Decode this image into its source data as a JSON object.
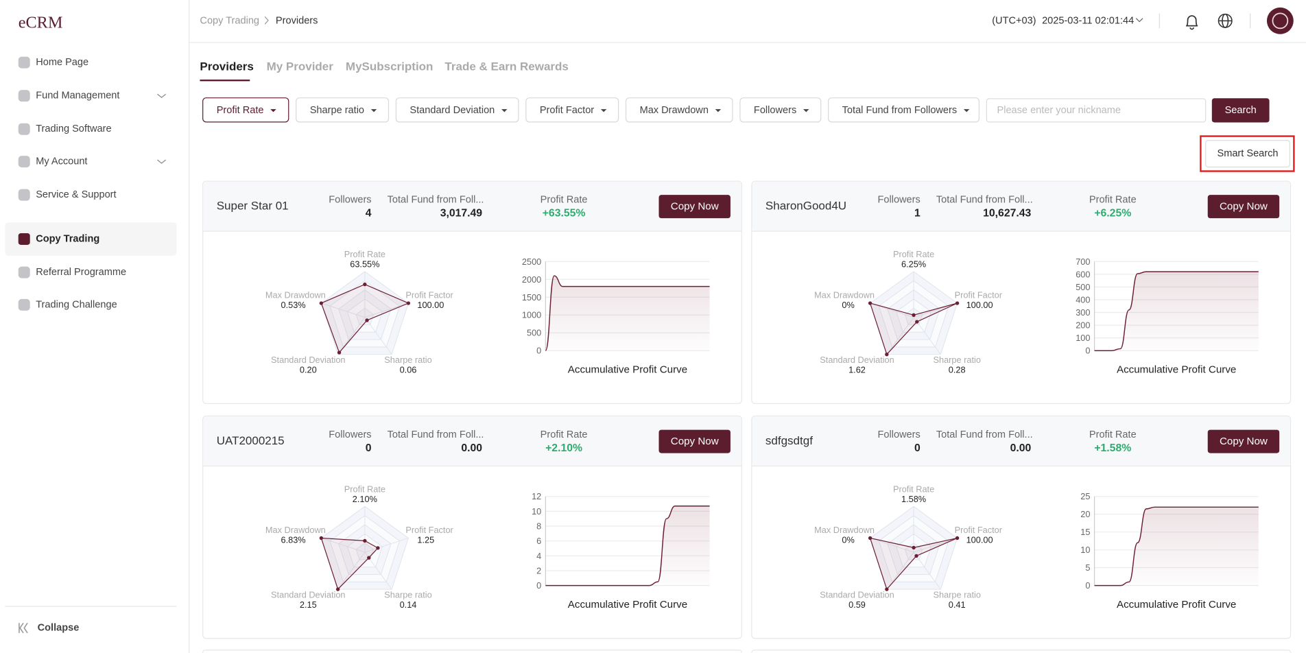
{
  "sidebar": {
    "logo": "eCRM",
    "items": [
      "Home Page",
      "Fund Management",
      "Trading Software",
      "My Account",
      "Service & Support",
      "Copy Trading",
      "Referral Programme",
      "Trading Challenge"
    ],
    "collapse": "Collapse"
  },
  "header": {
    "breadcrumb": [
      "Copy Trading",
      "Providers"
    ],
    "timezone": "(UTC+03)",
    "datetime": "2025-03-11 02:01:44"
  },
  "tabs": [
    "Providers",
    "My Provider",
    "MySubscription",
    "Trade & Earn Rewards"
  ],
  "filters": [
    "Profit Rate",
    "Sharpe ratio",
    "Standard Deviation",
    "Profit Factor",
    "Max Drawdown",
    "Followers",
    "Total Fund from Followers"
  ],
  "search_placeholder": "Please enter your nickname",
  "search_button": "Search",
  "smart_search": "Smart Search",
  "card_labels": {
    "followers": "Followers",
    "total_fund": "Total Fund from Foll...",
    "profit_rate": "Profit Rate",
    "copy": "Copy Now",
    "curve_title": "Accumulative Profit Curve"
  },
  "radar_axes": [
    "Profit Rate",
    "Profit Factor",
    "Sharpe ratio",
    "Standard Deviation",
    "Max Drawdown"
  ],
  "providers": [
    {
      "name": "Super Star 01",
      "followers": 4,
      "total_fund": "3,017.49",
      "profit_rate": "+63.55%",
      "radar": {
        "values": [
          72,
          100,
          8,
          95,
          100
        ],
        "value_labels": [
          "63.55%",
          "100.00",
          "0.06",
          "0.20",
          "0.53%"
        ]
      },
      "curve": {
        "type": "line",
        "ylim": [
          0,
          2500
        ],
        "yticks": [
          0,
          500,
          1000,
          1500,
          2000,
          2500
        ],
        "values": [
          0,
          2100,
          1800,
          1800,
          1800,
          1800,
          1800,
          1800,
          1800,
          1800,
          1800,
          1800,
          1800,
          1800,
          1800,
          1800,
          1800,
          1800,
          1800,
          1800
        ]
      }
    },
    {
      "name": "SharonGood4U",
      "followers": 1,
      "total_fund": "10,627.43",
      "profit_rate": "+6.25%",
      "radar": {
        "values": [
          5,
          100,
          12,
          100,
          100
        ],
        "value_labels": [
          "6.25%",
          "100.00",
          "0.28",
          "1.62",
          "0%"
        ]
      },
      "curve": {
        "type": "line",
        "ylim": [
          0,
          700
        ],
        "yticks": [
          0,
          100,
          200,
          300,
          400,
          500,
          600,
          700
        ],
        "values": [
          0,
          0,
          0,
          15,
          320,
          605,
          620,
          620,
          620,
          620,
          620,
          620,
          620,
          620,
          620,
          620,
          620,
          620,
          620,
          620
        ]
      }
    },
    {
      "name": "UAT2000215",
      "followers": 0,
      "total_fund": "0.00",
      "profit_rate": "+2.10%",
      "radar": {
        "values": [
          25,
          30,
          15,
          100,
          100
        ],
        "value_labels": [
          "2.10%",
          "1.25",
          "0.14",
          "2.15",
          "6.83%"
        ]
      },
      "curve": {
        "type": "line",
        "ylim": [
          0,
          12
        ],
        "yticks": [
          0,
          2,
          4,
          6,
          8,
          10,
          12
        ],
        "values": [
          0,
          0,
          0,
          0,
          0,
          0,
          0,
          0,
          0,
          0,
          0,
          0,
          0,
          0.5,
          9,
          10.7,
          10.7,
          10.7,
          10.7,
          10.7
        ]
      }
    },
    {
      "name": "sdfgsdtgf",
      "followers": 0,
      "total_fund": "0.00",
      "profit_rate": "+1.58%",
      "radar": {
        "values": [
          10,
          100,
          10,
          100,
          100
        ],
        "value_labels": [
          "1.58%",
          "100.00",
          "0.41",
          "0.59",
          "0%"
        ]
      },
      "curve": {
        "type": "line",
        "ylim": [
          0,
          25
        ],
        "yticks": [
          0,
          5,
          10,
          15,
          20,
          25
        ],
        "values": [
          0,
          0,
          0,
          0,
          1,
          12,
          21.5,
          22,
          22,
          22,
          22,
          22,
          22,
          22,
          22,
          22,
          22,
          22,
          22,
          22
        ]
      }
    }
  ]
}
